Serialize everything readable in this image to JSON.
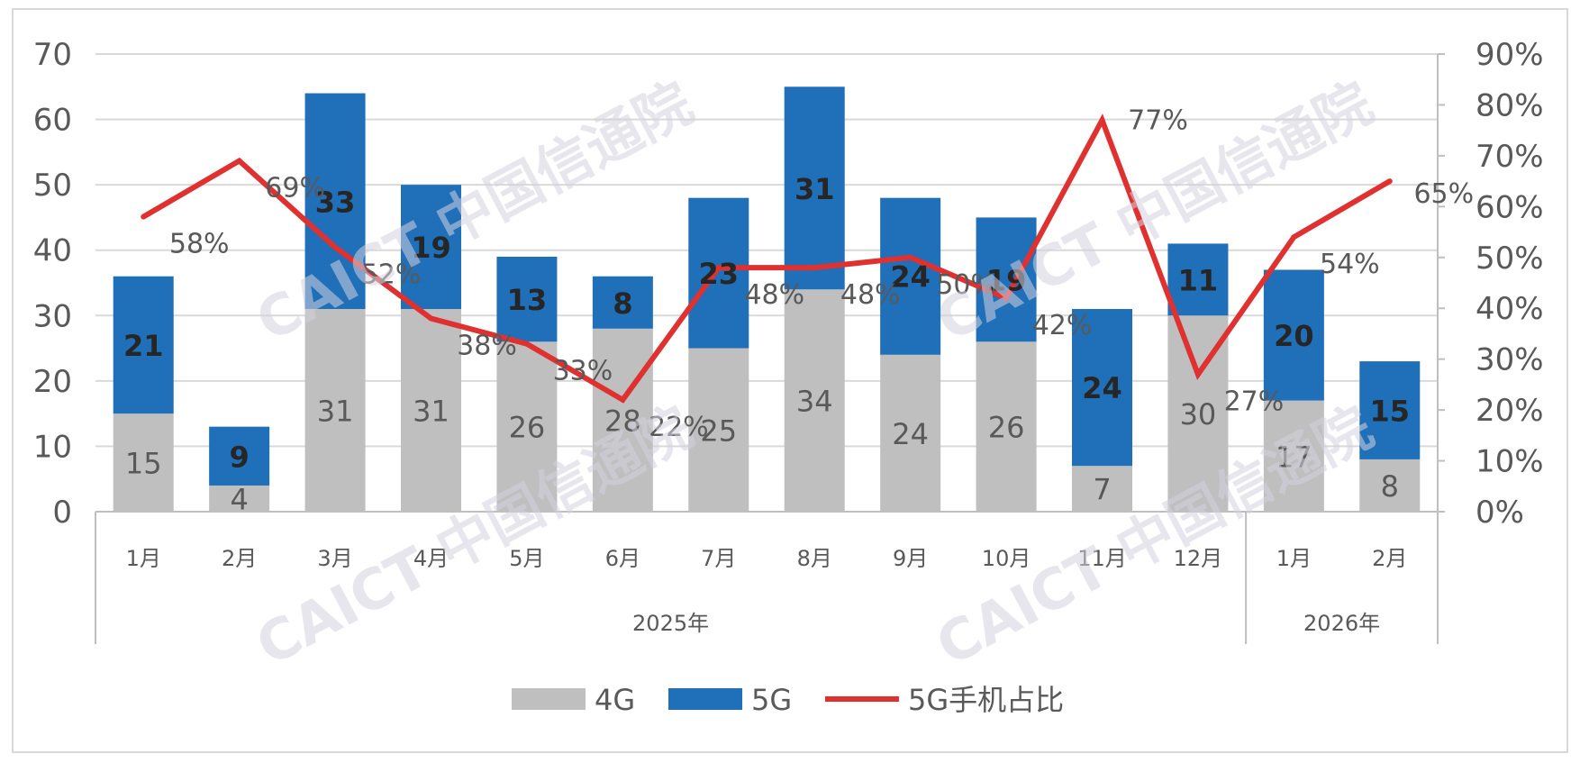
{
  "chart_data": {
    "type": "bar",
    "groups": [
      {
        "label": "2025年",
        "categories": [
          "1月",
          "2月",
          "3月",
          "4月",
          "5月",
          "6月",
          "7月",
          "8月",
          "9月",
          "10月",
          "11月",
          "12月"
        ]
      },
      {
        "label": "2026年",
        "categories": [
          "1月",
          "2月"
        ]
      }
    ],
    "categories": [
      "1月",
      "2月",
      "3月",
      "4月",
      "5月",
      "6月",
      "7月",
      "8月",
      "9月",
      "10月",
      "11月",
      "12月",
      "1月",
      "2月"
    ],
    "series": [
      {
        "name": "4G",
        "type": "bar",
        "stacked": true,
        "axis": "left",
        "color": "#bfbfbf",
        "values": [
          15,
          4,
          31,
          31,
          26,
          28,
          25,
          34,
          24,
          26,
          7,
          30,
          17,
          8
        ]
      },
      {
        "name": "5G",
        "type": "bar",
        "stacked": true,
        "axis": "left",
        "color": "#1f6fb9",
        "values": [
          21,
          9,
          33,
          19,
          13,
          8,
          23,
          31,
          24,
          19,
          24,
          11,
          20,
          15
        ]
      },
      {
        "name": "5G手机占比",
        "type": "line",
        "axis": "right",
        "color": "#e03131",
        "values": [
          58,
          69,
          52,
          38,
          33,
          22,
          48,
          48,
          50,
          42,
          77,
          27,
          54,
          65
        ],
        "labels": [
          "58%",
          "69%",
          "52%",
          "38%",
          "33%",
          "22%",
          "48%",
          "48%",
          "50%",
          "42%",
          "77%",
          "27%",
          "54%",
          "65%"
        ]
      }
    ],
    "left_axis": {
      "min": 0,
      "max": 70,
      "step": 10,
      "ticks": [
        "0",
        "10",
        "20",
        "30",
        "40",
        "50",
        "60",
        "70"
      ]
    },
    "right_axis": {
      "min": 0,
      "max": 90,
      "step": 10,
      "ticks": [
        "0%",
        "10%",
        "20%",
        "30%",
        "40%",
        "50%",
        "60%",
        "70%",
        "80%",
        "90%"
      ]
    },
    "grid": true,
    "legend": {
      "position": "bottom",
      "items": [
        "4G",
        "5G",
        "5G手机占比"
      ]
    },
    "title": "",
    "xlabel": "",
    "ylabel": ""
  },
  "watermark": {
    "text": "CAICT 中国信通院"
  }
}
